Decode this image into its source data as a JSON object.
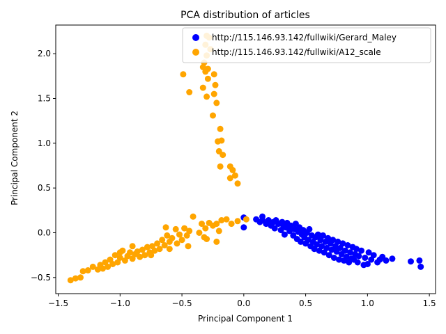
{
  "chart_data": {
    "type": "scatter",
    "title": "PCA distribution of articles",
    "xlabel": "Principal Component 1",
    "ylabel": "Principal Component 2",
    "xlim": [
      -1.52,
      1.55
    ],
    "ylim": [
      -0.68,
      2.32
    ],
    "xticks": [
      -1.5,
      -1.0,
      -0.5,
      0.0,
      0.5,
      1.0,
      1.5
    ],
    "xtick_labels": [
      "−1.5",
      "−1.0",
      "−0.5",
      "0.0",
      "0.5",
      "1.0",
      "1.5"
    ],
    "yticks": [
      -0.5,
      0.0,
      0.5,
      1.0,
      1.5,
      2.0
    ],
    "ytick_labels": [
      "−0.5",
      "0.0",
      "0.5",
      "1.0",
      "1.5",
      "2.0"
    ],
    "grid": false,
    "legend": "top-right",
    "series": [
      {
        "name": "http://115.146.93.142/fullwiki/Gerard_Maley",
        "color": "#0000ff",
        "points": [
          [
            0.0,
            0.17
          ],
          [
            0.0,
            0.06
          ],
          [
            0.1,
            0.15
          ],
          [
            0.13,
            0.12
          ],
          [
            0.15,
            0.14
          ],
          [
            0.15,
            0.18
          ],
          [
            0.18,
            0.1
          ],
          [
            0.2,
            0.14
          ],
          [
            0.22,
            0.08
          ],
          [
            0.24,
            0.12
          ],
          [
            0.25,
            0.05
          ],
          [
            0.26,
            0.14
          ],
          [
            0.28,
            0.1
          ],
          [
            0.3,
            0.03
          ],
          [
            0.31,
            0.12
          ],
          [
            0.32,
            0.08
          ],
          [
            0.33,
            -0.02
          ],
          [
            0.34,
            0.06
          ],
          [
            0.35,
            0.11
          ],
          [
            0.37,
            0.02
          ],
          [
            0.38,
            0.08
          ],
          [
            0.4,
            -0.03
          ],
          [
            0.41,
            0.04
          ],
          [
            0.42,
            0.1
          ],
          [
            0.43,
            -0.07
          ],
          [
            0.44,
            0.01
          ],
          [
            0.45,
            0.06
          ],
          [
            0.46,
            -0.1
          ],
          [
            0.47,
            -0.02
          ],
          [
            0.48,
            0.03
          ],
          [
            0.49,
            -0.05
          ],
          [
            0.5,
            -0.12
          ],
          [
            0.51,
            0.0
          ],
          [
            0.52,
            -0.08
          ],
          [
            0.53,
            0.04
          ],
          [
            0.54,
            -0.15
          ],
          [
            0.55,
            -0.03
          ],
          [
            0.56,
            -0.1
          ],
          [
            0.57,
            -0.18
          ],
          [
            0.58,
            -0.05
          ],
          [
            0.59,
            -0.13
          ],
          [
            0.6,
            -0.02
          ],
          [
            0.61,
            -0.2
          ],
          [
            0.62,
            -0.08
          ],
          [
            0.63,
            -0.15
          ],
          [
            0.64,
            -0.03
          ],
          [
            0.65,
            -0.22
          ],
          [
            0.66,
            -0.1
          ],
          [
            0.67,
            -0.17
          ],
          [
            0.68,
            -0.06
          ],
          [
            0.69,
            -0.25
          ],
          [
            0.7,
            -0.12
          ],
          [
            0.71,
            -0.19
          ],
          [
            0.72,
            -0.08
          ],
          [
            0.73,
            -0.28
          ],
          [
            0.74,
            -0.15
          ],
          [
            0.75,
            -0.21
          ],
          [
            0.76,
            -0.1
          ],
          [
            0.77,
            -0.3
          ],
          [
            0.78,
            -0.17
          ],
          [
            0.79,
            -0.24
          ],
          [
            0.8,
            -0.12
          ],
          [
            0.81,
            -0.31
          ],
          [
            0.82,
            -0.2
          ],
          [
            0.83,
            -0.27
          ],
          [
            0.84,
            -0.14
          ],
          [
            0.85,
            -0.33
          ],
          [
            0.86,
            -0.22
          ],
          [
            0.87,
            -0.29
          ],
          [
            0.88,
            -0.16
          ],
          [
            0.89,
            -0.3
          ],
          [
            0.9,
            -0.24
          ],
          [
            0.91,
            -0.18
          ],
          [
            0.92,
            -0.33
          ],
          [
            0.93,
            -0.26
          ],
          [
            0.95,
            -0.2
          ],
          [
            0.97,
            -0.36
          ],
          [
            0.98,
            -0.28
          ],
          [
            1.0,
            -0.35
          ],
          [
            1.01,
            -0.22
          ],
          [
            1.03,
            -0.3
          ],
          [
            1.05,
            -0.25
          ],
          [
            1.08,
            -0.33
          ],
          [
            1.1,
            -0.3
          ],
          [
            1.12,
            -0.27
          ],
          [
            1.15,
            -0.31
          ],
          [
            1.2,
            -0.29
          ],
          [
            1.35,
            -0.32
          ],
          [
            1.42,
            -0.31
          ],
          [
            1.43,
            -0.38
          ]
        ]
      },
      {
        "name": "http://115.146.93.142/fullwiki/A12_scale",
        "color": "#ffa500",
        "points": [
          [
            -0.3,
            2.2
          ],
          [
            -0.28,
            2.18
          ],
          [
            -0.31,
            2.1
          ],
          [
            -0.27,
            2.05
          ],
          [
            -0.3,
            1.98
          ],
          [
            -0.32,
            1.9
          ],
          [
            -0.33,
            1.85
          ],
          [
            -0.29,
            1.83
          ],
          [
            -0.31,
            1.8
          ],
          [
            -0.24,
            1.77
          ],
          [
            -0.49,
            1.77
          ],
          [
            -0.29,
            1.72
          ],
          [
            -0.23,
            1.65
          ],
          [
            -0.33,
            1.62
          ],
          [
            -0.44,
            1.57
          ],
          [
            -0.24,
            1.55
          ],
          [
            -0.3,
            1.52
          ],
          [
            -0.22,
            1.45
          ],
          [
            -0.25,
            1.31
          ],
          [
            -0.19,
            1.16
          ],
          [
            -0.21,
            1.02
          ],
          [
            -0.18,
            1.03
          ],
          [
            -0.2,
            0.91
          ],
          [
            -0.17,
            0.87
          ],
          [
            -0.19,
            0.74
          ],
          [
            -0.11,
            0.74
          ],
          [
            -0.09,
            0.7
          ],
          [
            -0.07,
            0.64
          ],
          [
            -0.11,
            0.61
          ],
          [
            -0.05,
            0.55
          ],
          [
            -0.41,
            0.18
          ],
          [
            -0.22,
            0.1
          ],
          [
            -0.18,
            0.14
          ],
          [
            -0.14,
            0.15
          ],
          [
            -0.34,
            0.1
          ],
          [
            -0.28,
            0.11
          ],
          [
            -0.31,
            0.05
          ],
          [
            -0.25,
            0.08
          ],
          [
            -0.2,
            0.02
          ],
          [
            -0.36,
            0.0
          ],
          [
            -0.32,
            -0.05
          ],
          [
            -0.22,
            -0.1
          ],
          [
            -0.44,
            0.02
          ],
          [
            -0.46,
            -0.03
          ],
          [
            -0.48,
            0.05
          ],
          [
            -0.5,
            -0.08
          ],
          [
            -0.52,
            -0.02
          ],
          [
            -0.54,
            -0.12
          ],
          [
            -0.45,
            -0.15
          ],
          [
            -0.58,
            -0.06
          ],
          [
            -0.6,
            -0.1
          ],
          [
            -0.62,
            -0.03
          ],
          [
            -0.64,
            -0.14
          ],
          [
            -0.66,
            -0.08
          ],
          [
            -0.68,
            -0.18
          ],
          [
            -0.7,
            -0.12
          ],
          [
            -0.72,
            -0.2
          ],
          [
            -0.74,
            -0.15
          ],
          [
            -0.76,
            -0.22
          ],
          [
            -0.78,
            -0.16
          ],
          [
            -0.8,
            -0.25
          ],
          [
            -0.82,
            -0.19
          ],
          [
            -0.84,
            -0.27
          ],
          [
            -0.86,
            -0.21
          ],
          [
            -0.88,
            -0.24
          ],
          [
            -0.9,
            -0.29
          ],
          [
            -0.92,
            -0.22
          ],
          [
            -0.94,
            -0.26
          ],
          [
            -0.96,
            -0.31
          ],
          [
            -0.98,
            -0.2
          ],
          [
            -1.0,
            -0.28
          ],
          [
            -1.02,
            -0.33
          ],
          [
            -1.04,
            -0.25
          ],
          [
            -1.06,
            -0.35
          ],
          [
            -1.08,
            -0.3
          ],
          [
            -1.1,
            -0.38
          ],
          [
            -1.12,
            -0.33
          ],
          [
            -1.14,
            -0.4
          ],
          [
            -1.16,
            -0.36
          ],
          [
            -1.18,
            -0.41
          ],
          [
            -1.22,
            -0.38
          ],
          [
            -1.26,
            -0.42
          ],
          [
            -1.3,
            -0.43
          ],
          [
            -1.32,
            -0.5
          ],
          [
            -1.36,
            -0.51
          ],
          [
            -1.4,
            -0.53
          ],
          [
            -0.63,
            0.06
          ],
          [
            -0.55,
            0.04
          ],
          [
            -0.9,
            -0.15
          ],
          [
            -1.0,
            -0.22
          ],
          [
            -0.1,
            0.1
          ],
          [
            -0.05,
            0.13
          ],
          [
            0.02,
            0.15
          ],
          [
            -0.3,
            -0.07
          ],
          [
            -0.6,
            -0.18
          ],
          [
            -0.75,
            -0.25
          ]
        ]
      }
    ]
  }
}
